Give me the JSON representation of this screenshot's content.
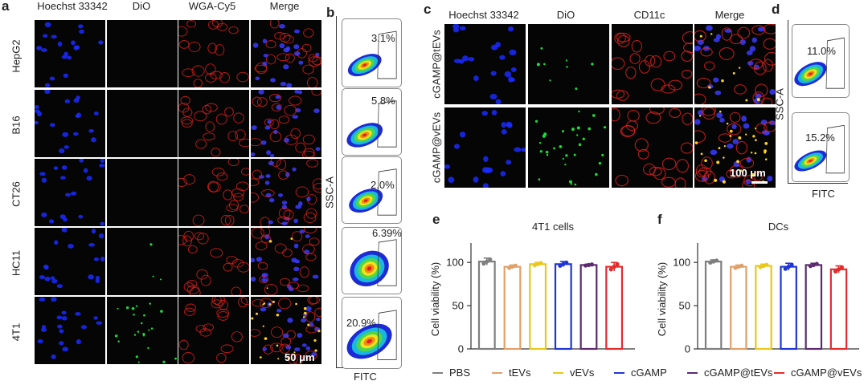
{
  "panels": {
    "a": {
      "label": "a",
      "columns": [
        "Hoechst 33342",
        "DiO",
        "WGA-Cy5",
        "Merge"
      ],
      "rows": [
        "HepG2",
        "B16",
        "CT26",
        "HC11",
        "4T1"
      ],
      "scale": "50 μm"
    },
    "b": {
      "label": "b",
      "ylabel": "SSC-A",
      "xlabel": "FITC",
      "percents": [
        "3.1%",
        "5.8%",
        "2.0%",
        "6.39%",
        "20.9%"
      ]
    },
    "c": {
      "label": "c",
      "columns": [
        "Hoechst 33342",
        "DiO",
        "CD11c",
        "Merge"
      ],
      "rows": [
        "cGAMP@tEVs",
        "cGAMP@vEVs"
      ],
      "scale": "100 μm"
    },
    "d": {
      "label": "d",
      "ylabel": "SSC-A",
      "xlabel": "FITC",
      "percents": [
        "11.0%",
        "15.2%"
      ]
    },
    "e": {
      "label": "e"
    },
    "f": {
      "label": "f"
    }
  },
  "legend": [
    {
      "name": "PBS",
      "color": "#7f7f7f"
    },
    {
      "name": "tEVs",
      "color": "#e0a06a"
    },
    {
      "name": "vEVs",
      "color": "#e8c81a"
    },
    {
      "name": "cGAMP",
      "color": "#1f35d6"
    },
    {
      "name": "cGAMP@tEVs",
      "color": "#5c2a6e"
    },
    {
      "name": "cGAMP@vEVs",
      "color": "#e52b2b"
    }
  ],
  "chart_data": [
    {
      "type": "bar",
      "title": "4T1 cells",
      "ylabel": "Cell viability (%)",
      "categories": [
        "PBS",
        "tEVs",
        "vEVs",
        "cGAMP",
        "cGAMP@tEVs",
        "cGAMP@vEVs"
      ],
      "values": [
        101,
        95,
        98,
        98,
        97,
        95
      ],
      "errors": [
        4,
        2,
        2,
        3,
        1,
        5
      ],
      "ylim": [
        0,
        115
      ],
      "yticks": [
        0,
        50,
        100
      ],
      "colors": [
        "#7f7f7f",
        "#e0a06a",
        "#e8c81a",
        "#1f35d6",
        "#5c2a6e",
        "#e52b2b"
      ]
    },
    {
      "type": "bar",
      "title": "DCs",
      "ylabel": "Cell viability (%)",
      "categories": [
        "PBS",
        "tEVs",
        "vEVs",
        "cGAMP",
        "cGAMP@tEVs",
        "cGAMP@vEVs"
      ],
      "values": [
        101,
        95,
        96,
        95,
        97,
        92
      ],
      "errors": [
        2,
        2,
        2,
        4,
        2,
        4
      ],
      "ylim": [
        0,
        115
      ],
      "yticks": [
        0,
        50,
        100
      ],
      "colors": [
        "#7f7f7f",
        "#e0a06a",
        "#e8c81a",
        "#1f35d6",
        "#5c2a6e",
        "#e52b2b"
      ]
    }
  ]
}
